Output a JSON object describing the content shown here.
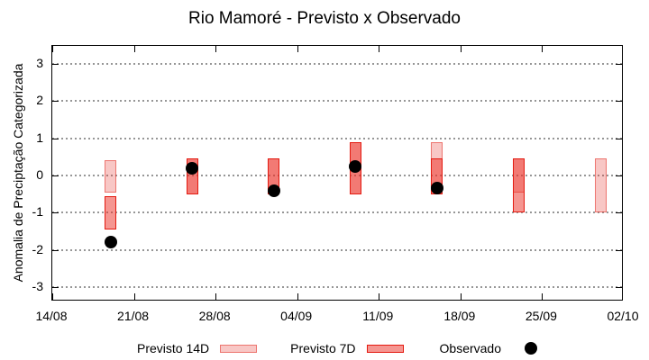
{
  "colors": {
    "previsto14d_fill": "rgba(230,55,45,0.28)",
    "previsto14d_border": "rgba(225,35,25,0.5)",
    "previsto7d_fill": "rgba(235,45,35,0.5)",
    "previsto7d_border": "#e41a10",
    "observado": "#000000",
    "grid": "#969696",
    "axis": "#000000"
  },
  "chart_data": {
    "type": "bar",
    "subtype": "range-bars-with-points",
    "title": "Rio Mamoré - Previsto x Observado",
    "xlabel": "",
    "ylabel": "Anomalia de Preciptação Categorizada",
    "grid": "horizontal-dotted",
    "legend_position": "below-plot",
    "ylim": [
      -3.4,
      3.45
    ],
    "y_ticks": [
      3,
      2,
      1,
      0,
      -1,
      -2,
      -3
    ],
    "x_range_days": [
      0,
      49
    ],
    "x_ticks": [
      {
        "label": "14/08",
        "day": 0
      },
      {
        "label": "21/08",
        "day": 7
      },
      {
        "label": "28/08",
        "day": 14
      },
      {
        "label": "04/09",
        "day": 21
      },
      {
        "label": "11/09",
        "day": 28
      },
      {
        "label": "18/09",
        "day": 35
      },
      {
        "label": "25/09",
        "day": 42
      },
      {
        "label": "02/10",
        "day": 49
      }
    ],
    "legend": [
      "Previsto 14D",
      "Previsto 7D",
      "Observado"
    ],
    "series": [
      {
        "name": "Previsto 14D",
        "style": "14d",
        "bars": [
          {
            "date": "19/08",
            "day": 5,
            "low": -0.45,
            "high": 0.4
          },
          {
            "date": "26/08",
            "day": 12,
            "low": -0.5,
            "high": 0.45
          },
          {
            "date": "02/09",
            "day": 19,
            "low": -0.5,
            "high": 0.45
          },
          {
            "date": "09/09",
            "day": 26,
            "low": -0.5,
            "high": 0.9
          },
          {
            "date": "16/09",
            "day": 33,
            "low": -0.5,
            "high": 0.9
          },
          {
            "date": "23/09",
            "day": 40,
            "low": -0.45,
            "high": 0.45
          },
          {
            "date": "30/09",
            "day": 47,
            "low": -1.0,
            "high": 0.45
          }
        ]
      },
      {
        "name": "Previsto 7D",
        "style": "7d",
        "bars": [
          {
            "date": "19/08",
            "day": 5,
            "low": -1.45,
            "high": -0.55
          },
          {
            "date": "26/08",
            "day": 12,
            "low": -0.5,
            "high": 0.45
          },
          {
            "date": "02/09",
            "day": 19,
            "low": -0.5,
            "high": 0.45
          },
          {
            "date": "09/09",
            "day": 26,
            "low": -0.5,
            "high": 0.9
          },
          {
            "date": "16/09",
            "day": 33,
            "low": -0.5,
            "high": 0.45
          },
          {
            "date": "23/09",
            "day": 40,
            "low": -1.0,
            "high": 0.45
          }
        ]
      },
      {
        "name": "Observado",
        "style": "dot",
        "points": [
          {
            "date": "19/08",
            "day": 5,
            "value": -1.8
          },
          {
            "date": "26/08",
            "day": 12,
            "value": 0.2
          },
          {
            "date": "02/09",
            "day": 19,
            "value": -0.4
          },
          {
            "date": "09/09",
            "day": 26,
            "value": 0.25
          },
          {
            "date": "16/09",
            "day": 33,
            "value": -0.35
          }
        ]
      }
    ]
  }
}
